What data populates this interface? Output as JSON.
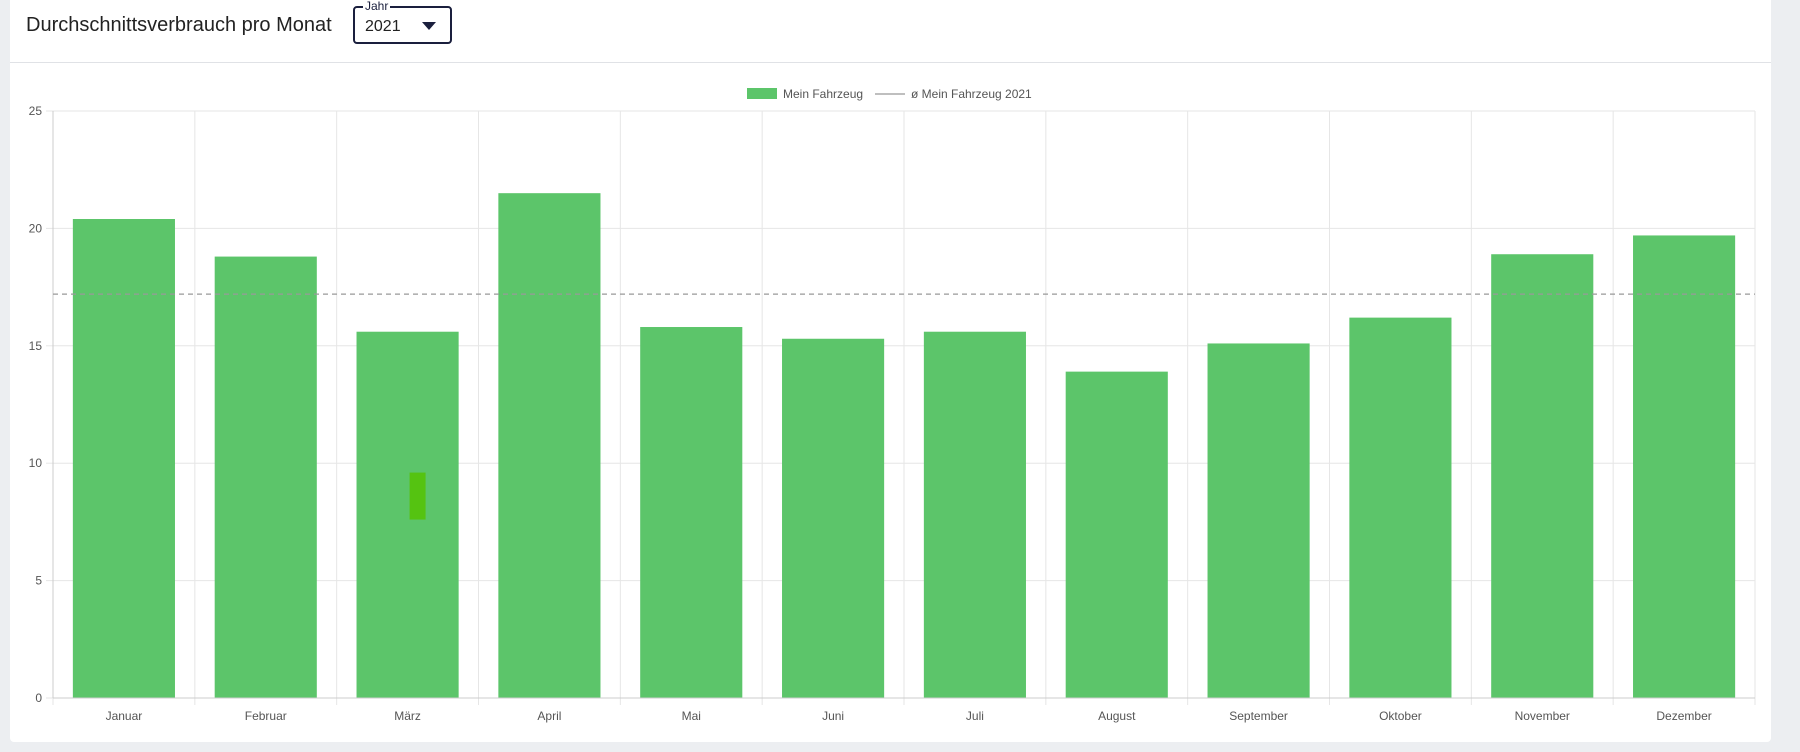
{
  "card": {
    "title": "Durchschnittsverbrauch pro Monat",
    "year_select": {
      "label": "Jahr",
      "value": "2021"
    }
  },
  "colors": {
    "bar": "#5cc56a",
    "highlight": "#55c311",
    "avg_line": "#999999",
    "grid": "#e6e6e6",
    "axis_text": "#555555"
  },
  "chart_data": {
    "type": "bar",
    "categories": [
      "Januar",
      "Februar",
      "März",
      "April",
      "Mai",
      "Juni",
      "Juli",
      "August",
      "September",
      "Oktober",
      "November",
      "Dezember"
    ],
    "series": [
      {
        "name": "Mein Fahrzeug",
        "values": [
          20.4,
          18.8,
          15.6,
          21.5,
          15.8,
          15.3,
          15.6,
          13.9,
          15.1,
          16.2,
          18.9,
          19.7
        ]
      }
    ],
    "reference_line": {
      "name": "ø Mein Fahrzeug 2021",
      "value": 17.2
    },
    "highlight_marker": {
      "category": "März",
      "y_from": 7.6,
      "y_to": 9.6
    },
    "ylim": [
      0,
      25
    ],
    "yticks": [
      "0",
      "5",
      "10",
      "15",
      "20",
      "25"
    ],
    "grid": true,
    "legend_position": "top-center"
  }
}
